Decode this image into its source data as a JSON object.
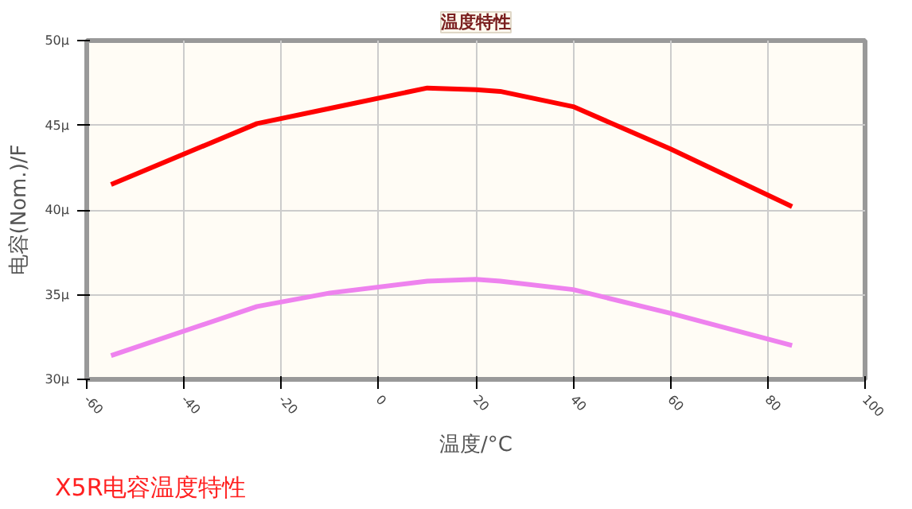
{
  "chart_data": {
    "type": "line",
    "title": "温度特性",
    "xlabel": "温度/°C",
    "ylabel": "电容(Nom.)/F",
    "annotations": [
      "X5R电容温度特性"
    ],
    "x": [
      -55,
      -25,
      -10,
      10,
      20,
      25,
      40,
      60,
      85
    ],
    "series": [
      {
        "color": "#ff0000",
        "values": [
          41.5,
          45.1,
          46.0,
          47.2,
          47.1,
          47.0,
          46.1,
          43.6,
          40.2
        ]
      },
      {
        "color": "#ee82ee",
        "values": [
          31.4,
          34.3,
          35.1,
          35.8,
          35.9,
          35.8,
          35.3,
          33.9,
          32.0
        ]
      }
    ],
    "xlim": [
      -60,
      100
    ],
    "xticks": [
      -60,
      -40,
      -20,
      0,
      20,
      40,
      60,
      80,
      100
    ],
    "ylim": [
      30,
      50
    ],
    "yticks": [
      {
        "value": 30,
        "label": "30μ"
      },
      {
        "value": 35,
        "label": "35μ"
      },
      {
        "value": 40,
        "label": "40μ"
      },
      {
        "value": 45,
        "label": "45μ"
      },
      {
        "value": 50,
        "label": "50μ"
      }
    ],
    "grid": true,
    "marker": "none",
    "line_style": "solid"
  }
}
